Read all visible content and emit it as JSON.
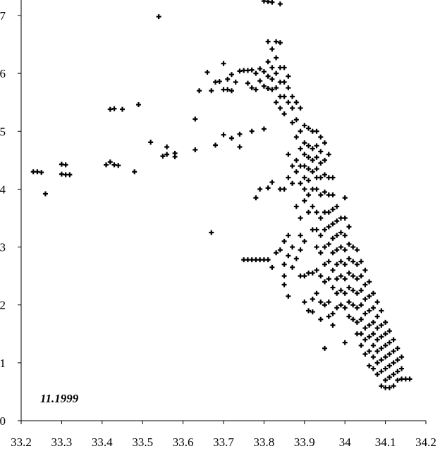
{
  "chart_data": {
    "type": "scatter",
    "title": "",
    "xlabel": "",
    "ylabel": "",
    "xlim": [
      33.2,
      34.2
    ],
    "ylim": [
      0,
      7
    ],
    "x_ticks": [
      "33.2",
      "33.3",
      "33.4",
      "33.5",
      "33.6",
      "33.7",
      "33.8",
      "33.9",
      "34",
      "34.1",
      "34.2"
    ],
    "y_ticks": [
      "0",
      "1",
      "2",
      "3",
      "4",
      "5",
      "6",
      "7"
    ],
    "annotation": "11.1999",
    "marker": "plus",
    "color": "#000000",
    "points": [
      [
        33.23,
        4.3
      ],
      [
        33.24,
        4.3
      ],
      [
        33.25,
        4.29
      ],
      [
        33.26,
        3.92
      ],
      [
        33.3,
        4.43
      ],
      [
        33.31,
        4.42
      ],
      [
        33.3,
        4.26
      ],
      [
        33.31,
        4.25
      ],
      [
        33.32,
        4.25
      ],
      [
        33.41,
        4.42
      ],
      [
        33.42,
        4.47
      ],
      [
        33.43,
        4.42
      ],
      [
        33.44,
        4.41
      ],
      [
        33.42,
        5.38
      ],
      [
        33.43,
        5.39
      ],
      [
        33.45,
        5.38
      ],
      [
        33.48,
        4.3
      ],
      [
        33.49,
        5.46
      ],
      [
        33.52,
        4.81
      ],
      [
        33.54,
        6.98
      ],
      [
        33.55,
        4.57
      ],
      [
        33.56,
        4.73
      ],
      [
        33.56,
        4.6
      ],
      [
        33.58,
        4.62
      ],
      [
        33.58,
        4.56
      ],
      [
        33.63,
        5.21
      ],
      [
        33.63,
        4.68
      ],
      [
        33.64,
        5.7
      ],
      [
        33.66,
        6.02
      ],
      [
        33.67,
        3.25
      ],
      [
        33.67,
        5.7
      ],
      [
        33.68,
        5.85
      ],
      [
        33.68,
        4.76
      ],
      [
        33.69,
        5.86
      ],
      [
        33.7,
        5.72
      ],
      [
        33.7,
        6.17
      ],
      [
        33.7,
        4.94
      ],
      [
        33.71,
        5.72
      ],
      [
        33.71,
        5.9
      ],
      [
        33.72,
        5.7
      ],
      [
        33.72,
        5.98
      ],
      [
        33.72,
        4.88
      ],
      [
        33.73,
        5.85
      ],
      [
        33.74,
        6.04
      ],
      [
        33.74,
        4.73
      ],
      [
        33.74,
        4.95
      ],
      [
        33.75,
        6.05
      ],
      [
        33.75,
        2.78
      ],
      [
        33.76,
        6.05
      ],
      [
        33.76,
        5.83
      ],
      [
        33.76,
        2.78
      ],
      [
        33.77,
        6.06
      ],
      [
        33.77,
        5.75
      ],
      [
        33.77,
        5.0
      ],
      [
        33.77,
        2.78
      ],
      [
        33.78,
        6.0
      ],
      [
        33.78,
        3.85
      ],
      [
        33.78,
        5.72
      ],
      [
        33.78,
        2.78
      ],
      [
        33.79,
        6.08
      ],
      [
        33.79,
        5.87
      ],
      [
        33.79,
        4.0
      ],
      [
        33.79,
        2.78
      ],
      [
        33.8,
        7.25
      ],
      [
        33.8,
        6.03
      ],
      [
        33.8,
        5.78
      ],
      [
        33.8,
        5.04
      ],
      [
        33.8,
        2.78
      ],
      [
        33.81,
        7.24
      ],
      [
        33.81,
        6.55
      ],
      [
        33.81,
        6.2
      ],
      [
        33.81,
        5.95
      ],
      [
        33.81,
        5.74
      ],
      [
        33.81,
        4.02
      ],
      [
        33.81,
        2.78
      ],
      [
        33.82,
        7.23
      ],
      [
        33.82,
        6.42
      ],
      [
        33.82,
        6.1
      ],
      [
        33.82,
        5.9
      ],
      [
        33.82,
        5.72
      ],
      [
        33.82,
        4.12
      ],
      [
        33.82,
        2.65
      ],
      [
        33.83,
        6.55
      ],
      [
        33.83,
        6.27
      ],
      [
        33.83,
        6.0
      ],
      [
        33.83,
        5.75
      ],
      [
        33.83,
        5.5
      ],
      [
        33.83,
        2.9
      ],
      [
        33.84,
        7.2
      ],
      [
        33.84,
        6.53
      ],
      [
        33.84,
        6.1
      ],
      [
        33.84,
        5.85
      ],
      [
        33.84,
        5.6
      ],
      [
        33.84,
        5.4
      ],
      [
        33.84,
        4.0
      ],
      [
        33.84,
        2.95
      ],
      [
        33.85,
        6.1
      ],
      [
        33.85,
        5.85
      ],
      [
        33.85,
        5.6
      ],
      [
        33.85,
        5.3
      ],
      [
        33.85,
        4.0
      ],
      [
        33.85,
        3.1
      ],
      [
        33.85,
        2.7
      ],
      [
        33.85,
        2.35
      ],
      [
        33.85,
        2.5
      ],
      [
        33.86,
        5.95
      ],
      [
        33.86,
        5.75
      ],
      [
        33.86,
        5.5
      ],
      [
        33.86,
        4.6
      ],
      [
        33.86,
        4.2
      ],
      [
        33.86,
        3.2
      ],
      [
        33.86,
        2.85
      ],
      [
        33.86,
        2.15
      ],
      [
        33.87,
        5.6
      ],
      [
        33.87,
        5.4
      ],
      [
        33.87,
        5.15
      ],
      [
        33.87,
        4.4
      ],
      [
        33.87,
        4.1
      ],
      [
        33.87,
        3.0
      ],
      [
        33.87,
        2.65
      ],
      [
        33.88,
        5.5
      ],
      [
        33.88,
        5.2
      ],
      [
        33.88,
        4.9
      ],
      [
        33.88,
        4.5
      ],
      [
        33.88,
        4.3
      ],
      [
        33.88,
        3.7
      ],
      [
        33.88,
        2.8
      ],
      [
        33.89,
        5.4
      ],
      [
        33.89,
        5.0
      ],
      [
        33.89,
        4.7
      ],
      [
        33.89,
        4.4
      ],
      [
        33.89,
        4.1
      ],
      [
        33.89,
        3.5
      ],
      [
        33.89,
        3.2
      ],
      [
        33.89,
        2.95
      ],
      [
        33.89,
        2.5
      ],
      [
        33.9,
        5.1
      ],
      [
        33.9,
        4.8
      ],
      [
        33.9,
        4.6
      ],
      [
        33.9,
        4.4
      ],
      [
        33.9,
        4.2
      ],
      [
        33.9,
        4.0
      ],
      [
        33.9,
        3.8
      ],
      [
        33.9,
        3.1
      ],
      [
        33.9,
        2.5
      ],
      [
        33.9,
        2.05
      ],
      [
        33.91,
        5.05
      ],
      [
        33.91,
        4.75
      ],
      [
        33.91,
        4.55
      ],
      [
        33.91,
        4.35
      ],
      [
        33.91,
        4.15
      ],
      [
        33.91,
        3.9
      ],
      [
        33.91,
        3.6
      ],
      [
        33.91,
        2.55
      ],
      [
        33.91,
        1.9
      ],
      [
        33.92,
        5.0
      ],
      [
        33.92,
        4.7
      ],
      [
        33.92,
        4.5
      ],
      [
        33.92,
        4.3
      ],
      [
        33.92,
        4.0
      ],
      [
        33.92,
        3.7
      ],
      [
        33.92,
        3.3
      ],
      [
        33.92,
        2.55
      ],
      [
        33.92,
        2.1
      ],
      [
        33.92,
        1.88
      ],
      [
        33.93,
        5.0
      ],
      [
        33.93,
        4.75
      ],
      [
        33.93,
        4.55
      ],
      [
        33.93,
        4.35
      ],
      [
        33.93,
        4.2
      ],
      [
        33.93,
        4.0
      ],
      [
        33.93,
        3.6
      ],
      [
        33.93,
        3.3
      ],
      [
        33.93,
        3.0
      ],
      [
        33.93,
        2.6
      ],
      [
        33.93,
        2.2
      ],
      [
        33.94,
        4.9
      ],
      [
        33.94,
        4.65
      ],
      [
        33.94,
        4.45
      ],
      [
        33.94,
        4.2
      ],
      [
        33.94,
        3.9
      ],
      [
        33.94,
        3.5
      ],
      [
        33.94,
        3.2
      ],
      [
        33.94,
        2.9
      ],
      [
        33.94,
        2.5
      ],
      [
        33.94,
        2.05
      ],
      [
        33.94,
        1.75
      ],
      [
        33.95,
        4.8
      ],
      [
        33.95,
        4.5
      ],
      [
        33.95,
        4.25
      ],
      [
        33.95,
        3.95
      ],
      [
        33.95,
        3.6
      ],
      [
        33.95,
        3.3
      ],
      [
        33.95,
        3.0
      ],
      [
        33.95,
        2.7
      ],
      [
        33.95,
        2.4
      ],
      [
        33.95,
        2.0
      ],
      [
        33.95,
        1.25
      ],
      [
        33.96,
        4.6
      ],
      [
        33.96,
        4.2
      ],
      [
        33.96,
        3.9
      ],
      [
        33.96,
        3.6
      ],
      [
        33.96,
        3.35
      ],
      [
        33.96,
        3.05
      ],
      [
        33.96,
        2.75
      ],
      [
        33.96,
        2.45
      ],
      [
        33.96,
        2.05
      ],
      [
        33.96,
        1.8
      ],
      [
        33.97,
        4.2
      ],
      [
        33.97,
        3.9
      ],
      [
        33.97,
        3.65
      ],
      [
        33.97,
        3.4
      ],
      [
        33.97,
        3.15
      ],
      [
        33.97,
        2.9
      ],
      [
        33.97,
        2.6
      ],
      [
        33.97,
        2.3
      ],
      [
        33.97,
        1.85
      ],
      [
        33.97,
        1.65
      ],
      [
        33.98,
        3.7
      ],
      [
        33.98,
        3.45
      ],
      [
        33.98,
        3.2
      ],
      [
        33.98,
        2.95
      ],
      [
        33.98,
        2.7
      ],
      [
        33.98,
        2.45
      ],
      [
        33.98,
        2.2
      ],
      [
        33.98,
        1.95
      ],
      [
        33.99,
        3.5
      ],
      [
        33.99,
        3.25
      ],
      [
        33.99,
        3.0
      ],
      [
        33.99,
        2.75
      ],
      [
        33.99,
        2.5
      ],
      [
        33.99,
        2.25
      ],
      [
        33.99,
        2.0
      ],
      [
        34.0,
        3.85
      ],
      [
        34.0,
        3.5
      ],
      [
        34.0,
        3.2
      ],
      [
        34.0,
        2.95
      ],
      [
        34.0,
        2.7
      ],
      [
        34.0,
        2.45
      ],
      [
        34.0,
        2.2
      ],
      [
        34.0,
        1.95
      ],
      [
        34.0,
        1.35
      ],
      [
        34.01,
        3.35
      ],
      [
        34.01,
        3.05
      ],
      [
        34.01,
        2.8
      ],
      [
        34.01,
        2.55
      ],
      [
        34.01,
        2.3
      ],
      [
        34.01,
        2.05
      ],
      [
        34.01,
        1.8
      ],
      [
        34.02,
        3.0
      ],
      [
        34.02,
        2.75
      ],
      [
        34.02,
        2.5
      ],
      [
        34.02,
        2.25
      ],
      [
        34.02,
        2.0
      ],
      [
        34.02,
        1.75
      ],
      [
        34.03,
        2.95
      ],
      [
        34.03,
        2.7
      ],
      [
        34.03,
        2.45
      ],
      [
        34.03,
        2.2
      ],
      [
        34.03,
        1.95
      ],
      [
        34.03,
        1.7
      ],
      [
        34.03,
        1.5
      ],
      [
        34.04,
        2.75
      ],
      [
        34.04,
        2.5
      ],
      [
        34.04,
        2.25
      ],
      [
        34.04,
        2.0
      ],
      [
        34.04,
        1.75
      ],
      [
        34.04,
        1.5
      ],
      [
        34.04,
        1.3
      ],
      [
        34.05,
        2.6
      ],
      [
        34.05,
        2.35
      ],
      [
        34.05,
        2.1
      ],
      [
        34.05,
        1.85
      ],
      [
        34.05,
        1.6
      ],
      [
        34.05,
        1.4
      ],
      [
        34.05,
        1.15
      ],
      [
        34.06,
        2.4
      ],
      [
        34.06,
        2.15
      ],
      [
        34.06,
        1.9
      ],
      [
        34.06,
        1.65
      ],
      [
        34.06,
        1.45
      ],
      [
        34.06,
        1.2
      ],
      [
        34.06,
        0.95
      ],
      [
        34.07,
        2.2
      ],
      [
        34.07,
        1.95
      ],
      [
        34.07,
        1.7
      ],
      [
        34.07,
        1.5
      ],
      [
        34.07,
        1.3
      ],
      [
        34.07,
        1.1
      ],
      [
        34.07,
        0.9
      ],
      [
        34.08,
        2.05
      ],
      [
        34.08,
        1.8
      ],
      [
        34.08,
        1.6
      ],
      [
        34.08,
        1.4
      ],
      [
        34.08,
        1.2
      ],
      [
        34.08,
        1.0
      ],
      [
        34.08,
        0.8
      ],
      [
        34.09,
        1.9
      ],
      [
        34.09,
        1.65
      ],
      [
        34.09,
        1.45
      ],
      [
        34.09,
        1.25
      ],
      [
        34.09,
        1.05
      ],
      [
        34.09,
        0.85
      ],
      [
        34.09,
        0.6
      ],
      [
        34.1,
        1.7
      ],
      [
        34.1,
        1.5
      ],
      [
        34.1,
        1.3
      ],
      [
        34.1,
        1.1
      ],
      [
        34.1,
        0.9
      ],
      [
        34.1,
        0.7
      ],
      [
        34.1,
        0.57
      ],
      [
        34.11,
        1.55
      ],
      [
        34.11,
        1.35
      ],
      [
        34.11,
        1.15
      ],
      [
        34.11,
        0.95
      ],
      [
        34.11,
        0.75
      ],
      [
        34.11,
        0.57
      ],
      [
        34.12,
        1.4
      ],
      [
        34.12,
        1.2
      ],
      [
        34.12,
        1.0
      ],
      [
        34.12,
        0.8
      ],
      [
        34.12,
        0.6
      ],
      [
        34.13,
        1.25
      ],
      [
        34.13,
        1.05
      ],
      [
        34.13,
        0.85
      ],
      [
        34.13,
        0.7
      ],
      [
        34.14,
        1.1
      ],
      [
        34.14,
        0.9
      ],
      [
        34.14,
        0.72
      ],
      [
        34.15,
        0.72
      ],
      [
        34.16,
        0.72
      ]
    ]
  }
}
